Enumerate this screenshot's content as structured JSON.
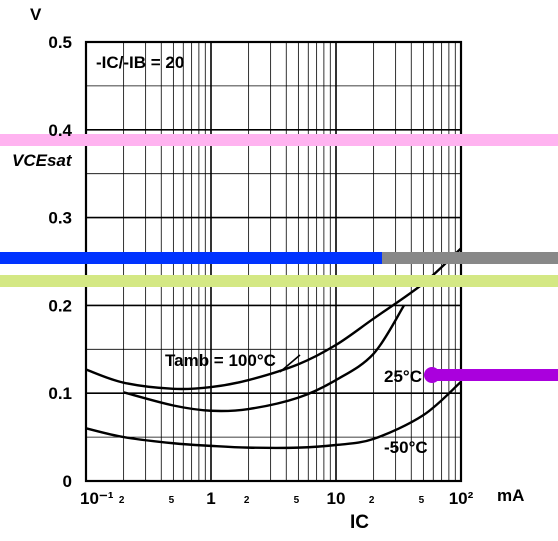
{
  "chart_data": {
    "type": "line",
    "title": "",
    "condition_label": "-IC/-IB = 20",
    "ylabel": "VCEsat",
    "yunit": "V",
    "xlabel": "IC",
    "xunit": "mA",
    "xscale": "log",
    "xlim": [
      0.1,
      100
    ],
    "ylim": [
      0,
      0.5
    ],
    "grid": true,
    "ticks": {
      "y": [
        "0",
        "0.1",
        "0.2",
        "0.3",
        "0.4",
        "0.5"
      ],
      "x_major": [
        "10⁻¹",
        "1",
        "10",
        "10²"
      ],
      "x_minor": [
        "2",
        "5",
        "2",
        "5",
        "2",
        "5"
      ]
    },
    "series": [
      {
        "name": "Tamb = 100°C",
        "x": [
          0.1,
          0.2,
          0.5,
          1,
          2,
          5,
          10,
          20,
          50,
          100
        ],
        "y": [
          0.127,
          0.112,
          0.105,
          0.107,
          0.115,
          0.133,
          0.155,
          0.185,
          0.225,
          0.265
        ]
      },
      {
        "name": "25°C",
        "x": [
          0.2,
          0.5,
          1,
          2,
          5,
          10,
          20,
          35
        ],
        "y": [
          0.101,
          0.086,
          0.08,
          0.082,
          0.095,
          0.115,
          0.145,
          0.2
        ]
      },
      {
        "name": "-50°C",
        "x": [
          0.1,
          0.2,
          0.5,
          1,
          2,
          5,
          10,
          20,
          50,
          100
        ],
        "y": [
          0.06,
          0.05,
          0.043,
          0.04,
          0.038,
          0.038,
          0.041,
          0.048,
          0.075,
          0.113
        ]
      }
    ]
  },
  "overlays": {
    "pink_band_color": "#ffb3f0",
    "blue_band_color": "#0033ff",
    "gray_band_color": "#888888",
    "yellow_band_color": "#d4e884",
    "purple_marker_color": "#aa00dd"
  }
}
